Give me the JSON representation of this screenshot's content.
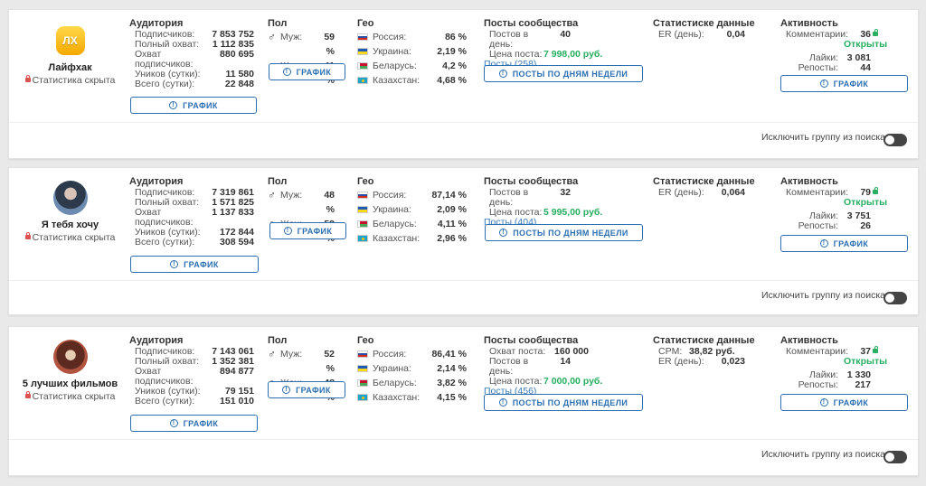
{
  "labels": {
    "audience": "Аудитория",
    "subscribers": "Подписчиков:",
    "full_reach": "Полный охват:",
    "reach": "Охват",
    "reach2": "подписчиков:",
    "uniques": "Уников (сутки):",
    "total": "Всего (сутки):",
    "graph": "ГРАФИК",
    "gender": "Пол",
    "male": "Муж:",
    "female": "Жен:",
    "geo": "Гео",
    "posts": "Посты сообщества",
    "posts_per_day": "Постов в день:",
    "post_price": "Цена поста:",
    "post_reach": "Охват поста:",
    "posts_by_day": "ПОСТЫ ПО ДНЯМ НЕДЕЛИ",
    "stats": "Статистиске данные",
    "er_day": "ER (день):",
    "cpm": "CPM:",
    "activity": "Активность",
    "comments": "Комментарии:",
    "open": "Открыты",
    "likes": "Лайки:",
    "reposts": "Репосты:",
    "exclude": "Исключить группу из поиска",
    "stats_hidden": "Статистика скрыта"
  },
  "groups": [
    {
      "name": "Лайфхак",
      "avatar_text": "ЛХ",
      "subscribers": "7 853 752",
      "full_reach": "1 112 835",
      "reach": "880 695",
      "uniques": "11 580",
      "total": "22 848",
      "male": "59 %",
      "female": "41 %",
      "geo": [
        {
          "country": "Россия:",
          "value": "86 %"
        },
        {
          "country": "Украина:",
          "value": "2,19 %"
        },
        {
          "country": "Беларусь:",
          "value": "4,2 %"
        },
        {
          "country": "Казахстан:",
          "value": "4,68 %"
        }
      ],
      "posts_per_day": "40",
      "post_price": "7 998,00 руб.",
      "posts_link": "Посты (258)",
      "er_day": "0,04",
      "comments": "36",
      "likes": "3 081",
      "reposts": "44"
    },
    {
      "name": "Я тебя хочу",
      "subscribers": "7 319 861",
      "full_reach": "1 571 825",
      "reach": "1 137 833",
      "uniques": "172 844",
      "total": "308 594",
      "male": "48 %",
      "female": "52 %",
      "geo": [
        {
          "country": "Россия:",
          "value": "87,14 %"
        },
        {
          "country": "Украина:",
          "value": "2,09 %"
        },
        {
          "country": "Беларусь:",
          "value": "4,11 %"
        },
        {
          "country": "Казахстан:",
          "value": "2,96 %"
        }
      ],
      "posts_per_day": "32",
      "post_price": "5 995,00 руб.",
      "posts_link": "Посты (404)",
      "er_day": "0,064",
      "comments": "79",
      "likes": "3 751",
      "reposts": "26"
    },
    {
      "name": "5 лучших фильмов",
      "subscribers": "7 143 061",
      "full_reach": "1 352 381",
      "reach": "894 877",
      "uniques": "79 151",
      "total": "151 010",
      "male": "52 %",
      "female": "48 %",
      "geo": [
        {
          "country": "Россия:",
          "value": "86,41 %"
        },
        {
          "country": "Украина:",
          "value": "2,14 %"
        },
        {
          "country": "Беларусь:",
          "value": "3,82 %"
        },
        {
          "country": "Казахстан:",
          "value": "4,15 %"
        }
      ],
      "post_reach": "160 000",
      "posts_per_day": "14",
      "post_price": "7 000,00 руб.",
      "posts_link": "Посты (456)",
      "cpm": "38,82 руб.",
      "er_day": "0,023",
      "comments": "37",
      "likes": "1 330",
      "reposts": "217"
    }
  ]
}
